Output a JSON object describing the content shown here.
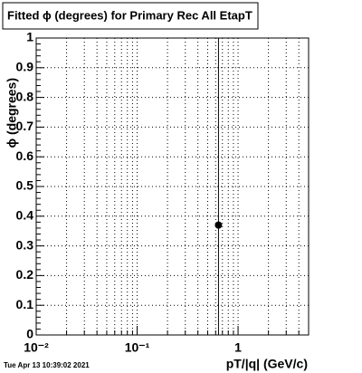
{
  "chart_data": {
    "type": "scatter",
    "title": "Fitted ϕ (degrees) for Primary Rec All EtapT",
    "x_label": "pT/|q| (GeV/c)",
    "y_label": "ϕ (degrees)",
    "timestamp": "Tue Apr 13 10:39:02 2021",
    "log_x": true,
    "grid": true,
    "xlim": [
      0.01,
      5
    ],
    "ylim": [
      0,
      1
    ],
    "xticks": [
      {
        "value": 0.01,
        "label": "10⁻²"
      },
      {
        "value": 0.1,
        "label": "10⁻¹"
      },
      1
    ],
    "yticks": [
      0,
      0.1,
      0.2,
      0.3,
      0.4,
      0.5,
      0.6,
      0.7,
      0.8,
      0.9,
      1
    ],
    "series": [
      {
        "color": "#000000",
        "x": [
          0.64
        ],
        "values": [
          0.37
        ],
        "errors": [
          1
        ]
      }
    ]
  }
}
